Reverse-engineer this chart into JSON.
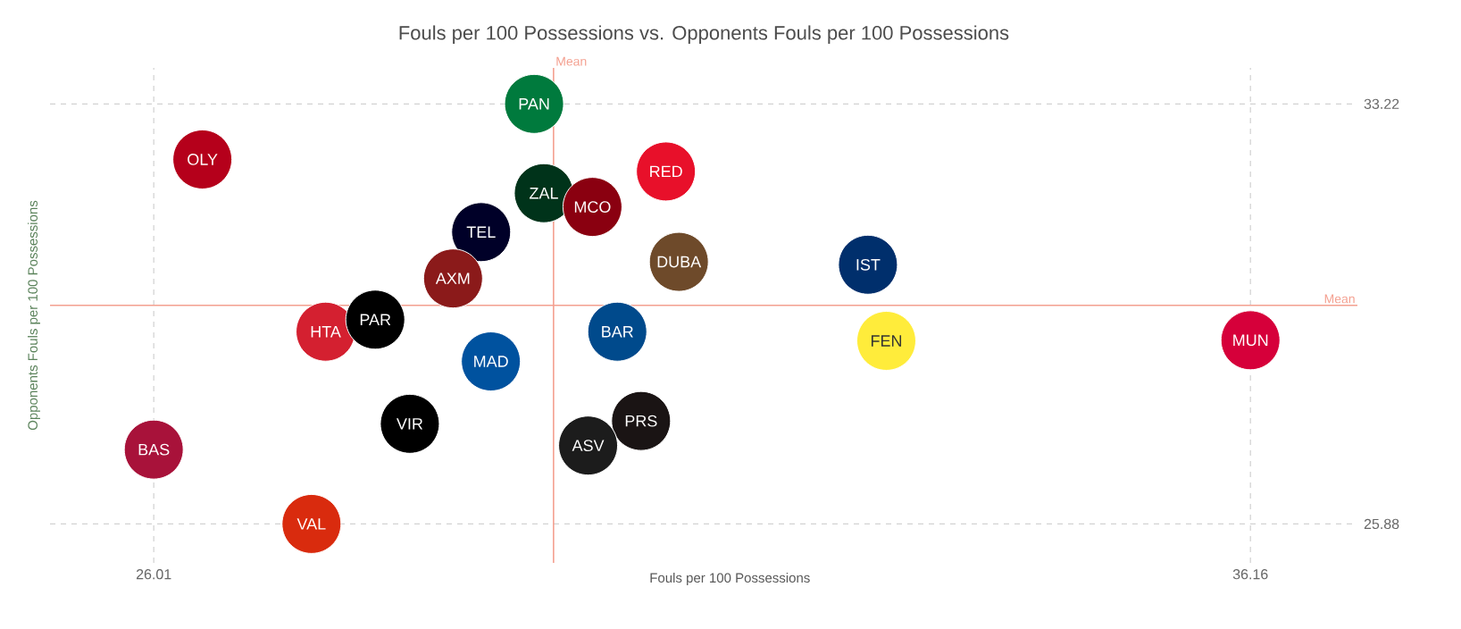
{
  "chart_data": {
    "type": "scatter",
    "title": "Fouls per 100 Possessions vs. Opponents Fouls per 100 Possessions",
    "xlabel": "Fouls per 100 Possessions",
    "ylabel": "Opponents Fouls per 100 Possessions",
    "xlim": [
      25.05,
      37.15
    ],
    "ylim": [
      25.2,
      33.85
    ],
    "xticks": [
      26.01,
      36.16
    ],
    "yticks": [
      25.88,
      33.22
    ],
    "grid": true,
    "marker": "circle",
    "ref_lines": [
      {
        "axis": "x",
        "value": 29.71,
        "label": "Mean",
        "color": "#f4a090"
      },
      {
        "axis": "y",
        "value": 29.7,
        "label": "Mean",
        "color": "#f4a090"
      }
    ],
    "series": [
      {
        "name": "PAN",
        "color": "#007a3d",
        "x": [
          29.53
        ],
        "values": [
          33.22
        ]
      },
      {
        "name": "OLY",
        "color": "#b5001b",
        "x": [
          26.46
        ],
        "values": [
          32.25
        ]
      },
      {
        "name": "RED",
        "color": "#e8102a",
        "x": [
          30.75
        ],
        "values": [
          32.04
        ]
      },
      {
        "name": "ZAL",
        "color": "#00331a",
        "x": [
          29.62
        ],
        "values": [
          31.66
        ]
      },
      {
        "name": "MCO",
        "color": "#8a0010",
        "x": [
          30.07
        ],
        "values": [
          31.42
        ]
      },
      {
        "name": "TEL",
        "color": "#000028",
        "x": [
          29.04
        ],
        "values": [
          30.98
        ]
      },
      {
        "name": "DUBA",
        "color": "#6e4a2a",
        "x": [
          30.87
        ],
        "values": [
          30.46
        ]
      },
      {
        "name": "AXM",
        "color": "#8b1a1a",
        "x": [
          28.78
        ],
        "values": [
          30.17
        ]
      },
      {
        "name": "HTA",
        "color": "#d42030",
        "x": [
          27.6
        ],
        "values": [
          29.24
        ]
      },
      {
        "name": "PAR",
        "color": "#000000",
        "x": [
          28.06
        ],
        "values": [
          29.45
        ]
      },
      {
        "name": "BAR",
        "color": "#004a8c",
        "x": [
          30.3
        ],
        "values": [
          29.24
        ]
      },
      {
        "name": "MAD",
        "color": "#00529f",
        "x": [
          29.13
        ],
        "values": [
          28.72
        ]
      },
      {
        "name": "VIR",
        "color": "#000000",
        "x": [
          28.38
        ],
        "values": [
          27.63
        ]
      },
      {
        "name": "PRS",
        "color": "#1a1414",
        "x": [
          30.52
        ],
        "values": [
          27.68
        ]
      },
      {
        "name": "ASV",
        "color": "#1c1c1c",
        "x": [
          30.03
        ],
        "values": [
          27.25
        ]
      },
      {
        "name": "BAS",
        "color": "#a8123a",
        "x": [
          26.01
        ],
        "values": [
          27.18
        ]
      },
      {
        "name": "VAL",
        "color": "#d92b0e",
        "x": [
          27.47
        ],
        "values": [
          25.88
        ]
      },
      {
        "name": "IST",
        "color": "#002f6c",
        "x": [
          32.62
        ],
        "values": [
          30.41
        ]
      },
      {
        "name": "FEN",
        "color": "#ffec3b",
        "x": [
          32.79
        ],
        "values": [
          29.08
        ]
      },
      {
        "name": "MUN",
        "color": "#d6003a",
        "x": [
          36.16
        ],
        "values": [
          29.09
        ]
      }
    ]
  }
}
